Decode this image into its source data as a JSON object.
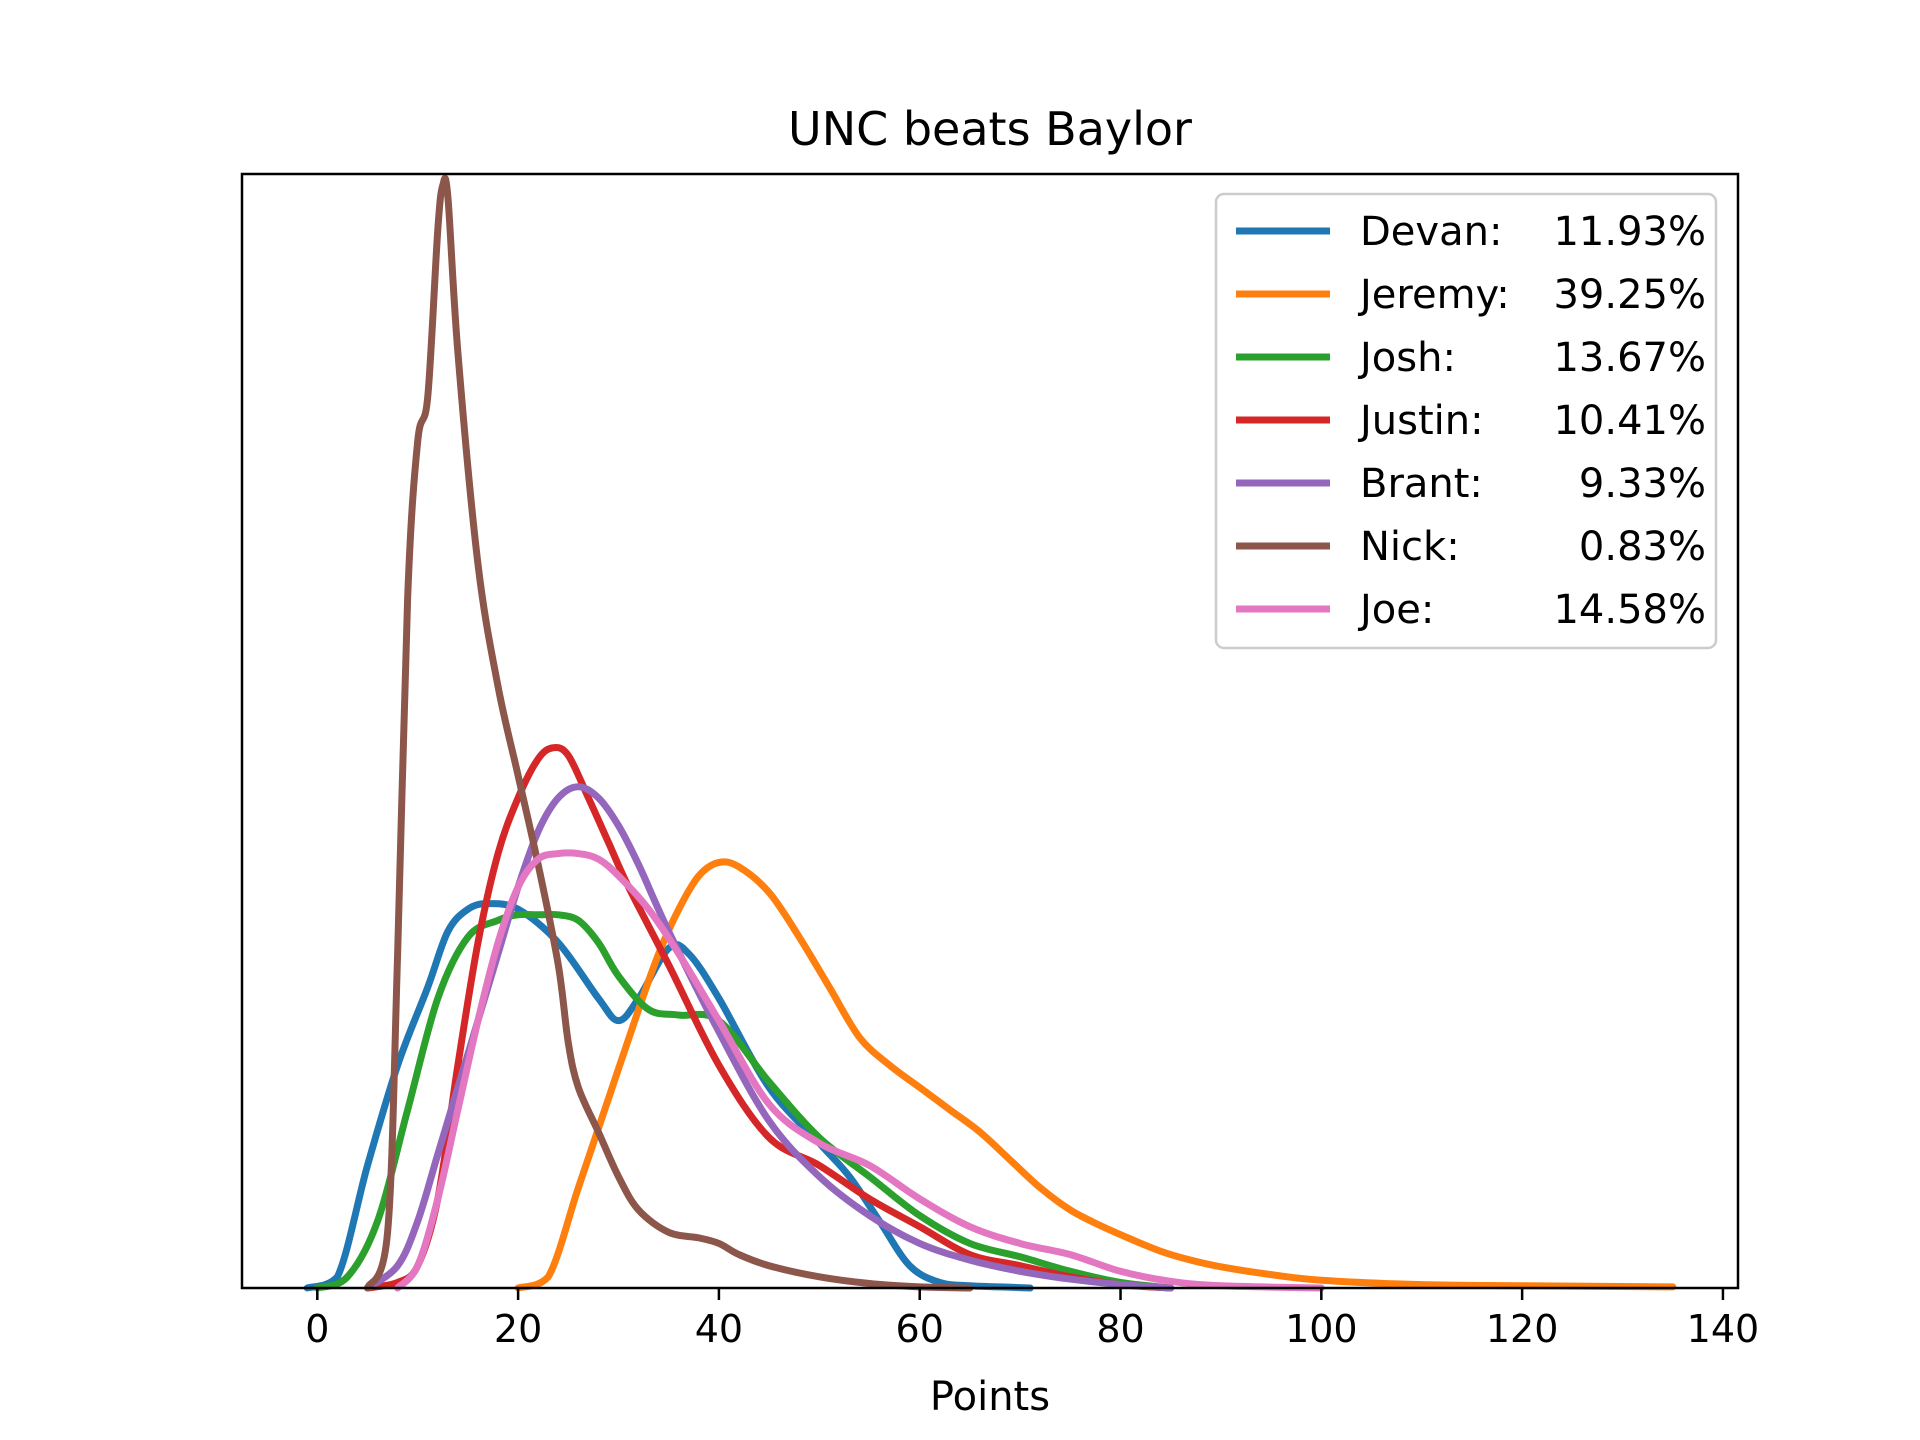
{
  "chart_data": {
    "type": "line",
    "title": "UNC beats Baylor",
    "xlabel": "Points",
    "ylabel": "",
    "xlim": [
      -7.5,
      141.5
    ],
    "ylim": [
      0,
      1.0
    ],
    "xticks": [
      0,
      20,
      40,
      60,
      80,
      100,
      120,
      140
    ],
    "x_tick_labels": [
      "0",
      "20",
      "40",
      "60",
      "80",
      "100",
      "120",
      "140"
    ],
    "yticks_shown": false,
    "grid": false,
    "legend_position": "upper right",
    "series": [
      {
        "name": "Devan",
        "pct": "11.93%",
        "color": "#1f77b4",
        "x": [
          -1,
          2,
          5,
          8,
          11,
          13,
          15,
          17,
          20,
          24,
          28,
          30,
          32,
          35,
          37,
          40,
          45,
          50,
          53,
          56,
          59,
          62,
          65,
          68,
          71
        ],
        "y": [
          0,
          0.01,
          0.11,
          0.2,
          0.27,
          0.32,
          0.34,
          0.345,
          0.34,
          0.31,
          0.26,
          0.24,
          0.26,
          0.305,
          0.3,
          0.26,
          0.18,
          0.13,
          0.1,
          0.06,
          0.02,
          0.005,
          0.002,
          0.001,
          0
        ]
      },
      {
        "name": "Jeremy",
        "pct": "39.25%",
        "color": "#ff7f0e",
        "x": [
          20,
          23,
          26,
          29,
          32,
          34,
          36,
          38,
          40,
          42,
          45,
          48,
          51,
          54,
          57,
          60,
          63,
          66,
          69,
          72,
          75,
          78,
          81,
          84,
          87,
          90,
          95,
          100,
          110,
          120,
          135
        ],
        "y": [
          0,
          0.01,
          0.09,
          0.17,
          0.25,
          0.3,
          0.34,
          0.37,
          0.382,
          0.378,
          0.355,
          0.315,
          0.27,
          0.225,
          0.2,
          0.18,
          0.16,
          0.14,
          0.115,
          0.09,
          0.07,
          0.056,
          0.044,
          0.033,
          0.025,
          0.019,
          0.012,
          0.007,
          0.003,
          0.002,
          0.001
        ]
      },
      {
        "name": "Josh",
        "pct": "13.67%",
        "color": "#2ca02c",
        "x": [
          0,
          3,
          6,
          9,
          12,
          15,
          18,
          20,
          22,
          24,
          26,
          28,
          30,
          33,
          36,
          40,
          45,
          50,
          55,
          60,
          65,
          70,
          75,
          80,
          85
        ],
        "y": [
          0,
          0.01,
          0.06,
          0.16,
          0.26,
          0.315,
          0.33,
          0.335,
          0.335,
          0.335,
          0.33,
          0.31,
          0.28,
          0.25,
          0.245,
          0.24,
          0.185,
          0.135,
          0.1,
          0.065,
          0.04,
          0.028,
          0.015,
          0.005,
          0
        ]
      },
      {
        "name": "Justin",
        "pct": "10.41%",
        "color": "#d62728",
        "x": [
          5,
          8,
          10,
          12,
          14,
          16,
          18,
          20,
          22,
          23.5,
          25,
          27,
          29,
          31,
          35,
          40,
          45,
          50,
          55,
          60,
          65,
          70,
          75,
          80,
          85
        ],
        "y": [
          0,
          0.005,
          0.02,
          0.08,
          0.2,
          0.31,
          0.39,
          0.44,
          0.475,
          0.485,
          0.478,
          0.44,
          0.4,
          0.36,
          0.29,
          0.2,
          0.135,
          0.11,
          0.08,
          0.055,
          0.03,
          0.02,
          0.01,
          0.003,
          0
        ]
      },
      {
        "name": "Brant",
        "pct": "9.33%",
        "color": "#9467bd",
        "x": [
          5,
          8,
          10,
          12,
          14,
          16,
          18,
          20,
          22,
          24,
          26,
          28,
          30,
          32,
          35,
          40,
          45,
          50,
          55,
          60,
          65,
          70,
          75,
          80,
          85
        ],
        "y": [
          0,
          0.02,
          0.06,
          0.12,
          0.18,
          0.24,
          0.3,
          0.36,
          0.41,
          0.44,
          0.45,
          0.44,
          0.415,
          0.38,
          0.32,
          0.23,
          0.15,
          0.1,
          0.065,
          0.04,
          0.025,
          0.015,
          0.008,
          0.003,
          0
        ]
      },
      {
        "name": "Nick",
        "pct": "0.83%",
        "color": "#8c564b",
        "x": [
          5,
          7,
          8,
          9,
          10,
          11,
          12,
          12.5,
          13,
          14,
          16,
          18,
          20,
          22,
          24,
          25,
          26,
          28,
          30,
          32,
          35,
          38,
          40,
          42,
          45,
          50,
          55,
          60,
          65
        ],
        "y": [
          0,
          0.05,
          0.3,
          0.62,
          0.76,
          0.8,
          0.95,
          0.99,
          0.98,
          0.84,
          0.65,
          0.54,
          0.46,
          0.38,
          0.29,
          0.22,
          0.18,
          0.14,
          0.1,
          0.07,
          0.05,
          0.045,
          0.04,
          0.03,
          0.02,
          0.01,
          0.004,
          0.001,
          0
        ]
      },
      {
        "name": "Joe",
        "pct": "14.58%",
        "color": "#e377c2",
        "x": [
          8,
          10,
          12,
          14,
          16,
          18,
          20,
          22,
          24,
          26,
          28,
          30,
          33,
          36,
          40,
          45,
          50,
          55,
          60,
          65,
          70,
          75,
          80,
          85,
          90,
          100
        ],
        "y": [
          0,
          0.02,
          0.08,
          0.16,
          0.24,
          0.31,
          0.36,
          0.385,
          0.39,
          0.39,
          0.385,
          0.37,
          0.34,
          0.3,
          0.24,
          0.165,
          0.13,
          0.11,
          0.08,
          0.055,
          0.04,
          0.03,
          0.015,
          0.006,
          0.002,
          0
        ]
      }
    ]
  }
}
